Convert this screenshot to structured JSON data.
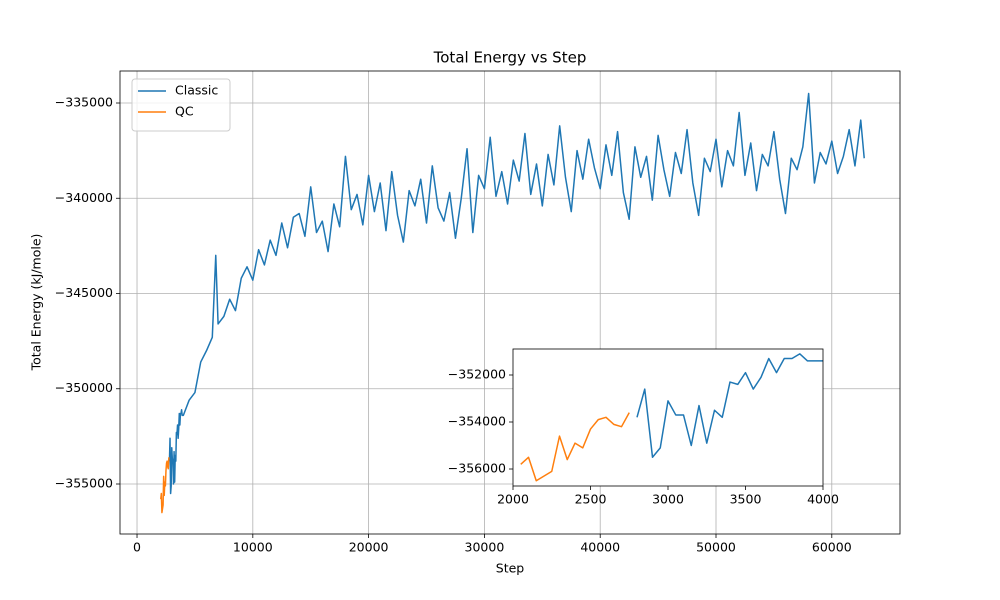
{
  "chart_data": {
    "type": "line",
    "title": "Total Energy vs Step",
    "x_label": "Step",
    "y_label": "Total Energy (kJ/mole)",
    "xlim": [
      -1470,
      65890
    ],
    "ylim": [
      -357625,
      -333320
    ],
    "xticks": [
      0,
      10000,
      20000,
      30000,
      40000,
      50000,
      60000
    ],
    "yticks": [
      {
        "value": -355000,
        "label": "−355000"
      },
      {
        "value": -350000,
        "label": "−350000"
      },
      {
        "value": -345000,
        "label": "−345000"
      },
      {
        "value": -340000,
        "label": "−340000"
      },
      {
        "value": -335000,
        "label": "−335000"
      }
    ],
    "grid": true,
    "legend": "upper left",
    "series": [
      {
        "name": "Classic",
        "color": "#1f77b4",
        "x": [
          2800,
          2850,
          2900,
          2950,
          3000,
          3050,
          3100,
          3150,
          3200,
          3250,
          3300,
          3350,
          3400,
          3450,
          3500,
          3550,
          3600,
          3650,
          3700,
          3750,
          3800,
          3850,
          3900,
          3950,
          4000,
          4500,
          5000,
          5500,
          6000,
          6500,
          6800,
          7000,
          7500,
          8000,
          8500,
          9000,
          9500,
          10000,
          10500,
          11000,
          11500,
          12000,
          12500,
          13000,
          13500,
          14000,
          14500,
          15000,
          15500,
          16000,
          16500,
          17000,
          17500,
          18000,
          18500,
          19000,
          19500,
          20000,
          20500,
          21000,
          21500,
          22000,
          22500,
          23000,
          23500,
          24000,
          24500,
          25000,
          25500,
          26000,
          26500,
          27000,
          27500,
          28000,
          28500,
          29000,
          29500,
          30000,
          30500,
          31000,
          31500,
          32000,
          32500,
          33000,
          33500,
          34000,
          34500,
          35000,
          35500,
          36000,
          36500,
          37000,
          37500,
          38000,
          38500,
          39000,
          39500,
          40000,
          40500,
          41000,
          41500,
          42000,
          42500,
          43000,
          43500,
          44000,
          44500,
          45000,
          45500,
          46000,
          46500,
          47000,
          47500,
          48000,
          48500,
          49000,
          49500,
          50000,
          50500,
          51000,
          51500,
          52000,
          52500,
          53000,
          53500,
          54000,
          54500,
          55000,
          55500,
          56000,
          56500,
          57000,
          57500,
          58000,
          58500,
          59000,
          59500,
          60000,
          60500,
          61000,
          61500,
          62000,
          62500,
          62800
        ],
        "values": [
          -353800,
          -352600,
          -355500,
          -355100,
          -353100,
          -353700,
          -353700,
          -355000,
          -353300,
          -354900,
          -353500,
          -353800,
          -352300,
          -352400,
          -351900,
          -352600,
          -352100,
          -351300,
          -351900,
          -351300,
          -351300,
          -351100,
          -351400,
          -351400,
          -351400,
          -350600,
          -350200,
          -348600,
          -348000,
          -347300,
          -343000,
          -346600,
          -346200,
          -345300,
          -345900,
          -344200,
          -343600,
          -344300,
          -342700,
          -343500,
          -342200,
          -343000,
          -341300,
          -342600,
          -341000,
          -340800,
          -342000,
          -339400,
          -341800,
          -341200,
          -342800,
          -340300,
          -341500,
          -337800,
          -340600,
          -339800,
          -341400,
          -338800,
          -340700,
          -339200,
          -341700,
          -338600,
          -340900,
          -342300,
          -339600,
          -340400,
          -339000,
          -341300,
          -338300,
          -340500,
          -341200,
          -339700,
          -342100,
          -340000,
          -337400,
          -341800,
          -338800,
          -339500,
          -336800,
          -339900,
          -338600,
          -340300,
          -338000,
          -339100,
          -336600,
          -339800,
          -338200,
          -340400,
          -337700,
          -339300,
          -336200,
          -338900,
          -340700,
          -337500,
          -339000,
          -336900,
          -338400,
          -339500,
          -337200,
          -338800,
          -336500,
          -339700,
          -341100,
          -337300,
          -338900,
          -337800,
          -340100,
          -336700,
          -338500,
          -339900,
          -337600,
          -338700,
          -336400,
          -339200,
          -340900,
          -337900,
          -338600,
          -336900,
          -339400,
          -337500,
          -338300,
          -335500,
          -338800,
          -337100,
          -339600,
          -337700,
          -338300,
          -336500,
          -339000,
          -340800,
          -337900,
          -338500,
          -337300,
          -334500,
          -339200,
          -337600,
          -338200,
          -337000,
          -338700,
          -337800,
          -336400,
          -338300,
          -335900,
          -337900
        ]
      },
      {
        "name": "QC",
        "color": "#ff7f0e",
        "x": [
          2050,
          2100,
          2150,
          2250,
          2300,
          2350,
          2400,
          2450,
          2500,
          2550,
          2600,
          2650,
          2700,
          2750
        ],
        "values": [
          -355800,
          -355500,
          -356500,
          -356100,
          -354600,
          -355600,
          -354900,
          -355100,
          -354300,
          -353900,
          -353800,
          -354100,
          -354200,
          -353600
        ]
      }
    ],
    "inset": {
      "xlim": [
        2000,
        4000
      ],
      "ylim": [
        -356723,
        -350894
      ],
      "xticks": [
        2000,
        2500,
        3000,
        3500,
        4000
      ],
      "yticks": [
        {
          "value": -356000,
          "label": "−356000"
        },
        {
          "value": -354000,
          "label": "−354000"
        },
        {
          "value": -352000,
          "label": "−352000"
        }
      ]
    }
  }
}
